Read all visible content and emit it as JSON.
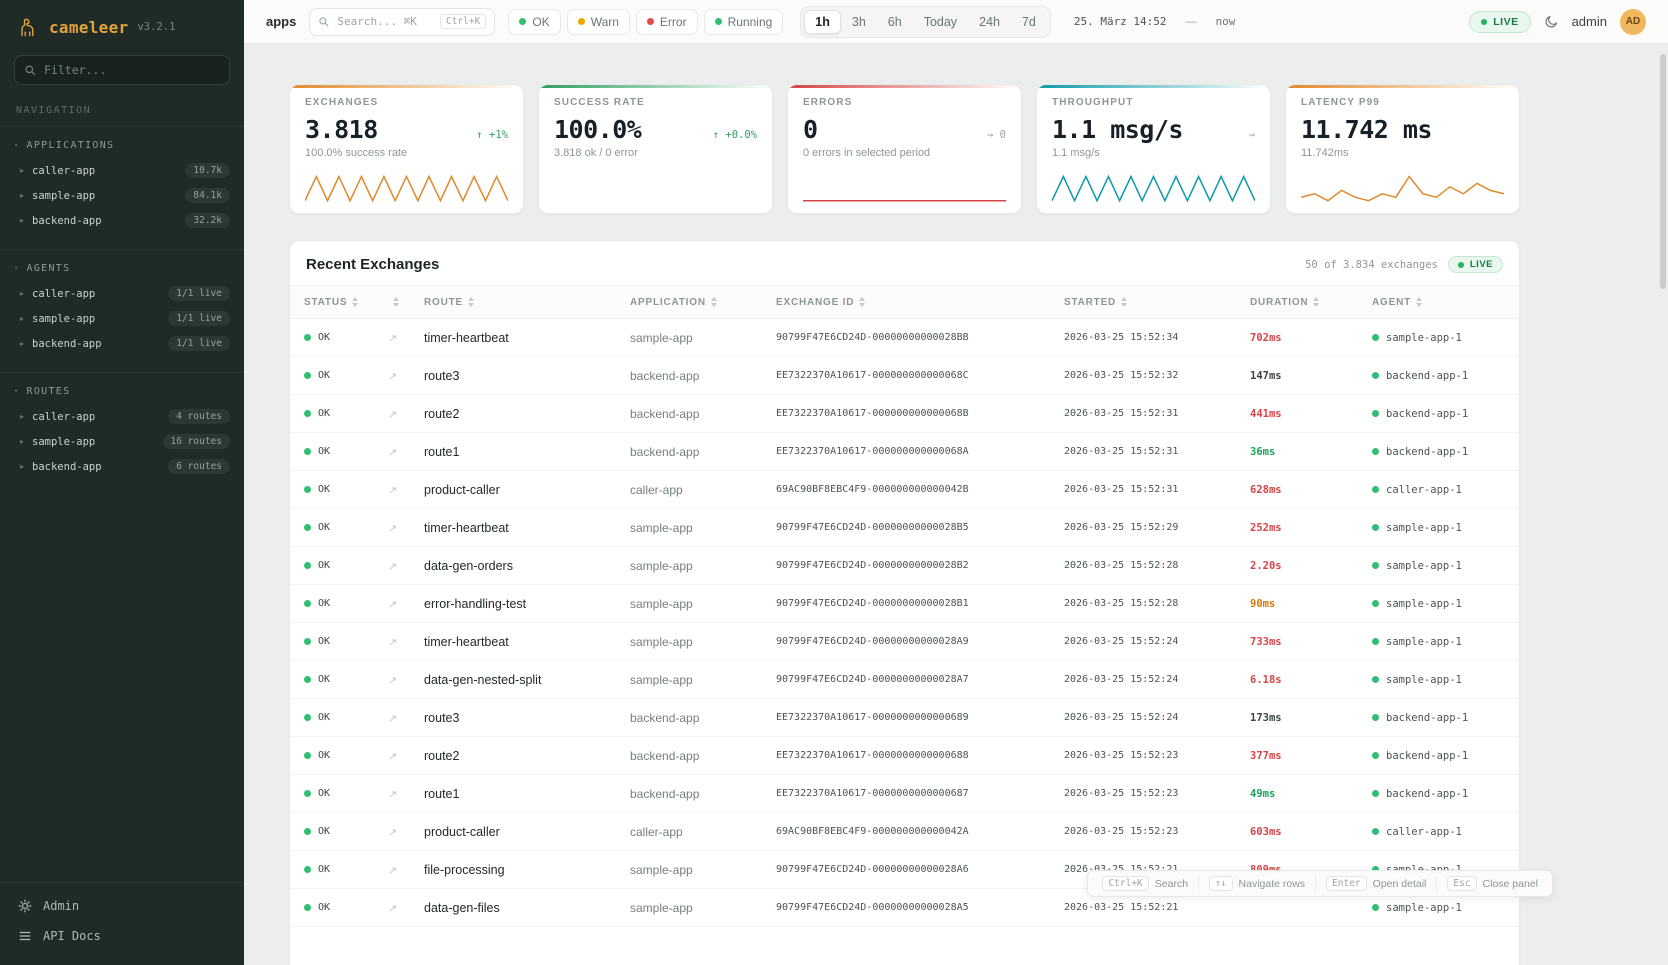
{
  "app": {
    "name": "cameleer",
    "version": "v3.2.1"
  },
  "icons": {
    "chevron": "▸",
    "caret": "▾",
    "expand": "↗"
  },
  "sidebar": {
    "filter_placeholder": "Filter...",
    "nav_label": "NAVIGATION",
    "applications": {
      "label": "APPLICATIONS",
      "items": [
        {
          "label": "caller-app",
          "badge": "10.7k"
        },
        {
          "label": "sample-app",
          "badge": "84.1k"
        },
        {
          "label": "backend-app",
          "badge": "32.2k"
        }
      ]
    },
    "agents": {
      "label": "AGENTS",
      "items": [
        {
          "label": "caller-app",
          "badge": "1/1 live"
        },
        {
          "label": "sample-app",
          "badge": "1/1 live"
        },
        {
          "label": "backend-app",
          "badge": "1/1 live"
        }
      ]
    },
    "routes": {
      "label": "ROUTES",
      "items": [
        {
          "label": "caller-app",
          "badge": "4 routes"
        },
        {
          "label": "sample-app",
          "badge": "16 routes"
        },
        {
          "label": "backend-app",
          "badge": "6 routes"
        }
      ]
    },
    "footer": {
      "admin": "Admin",
      "api_docs": "API Docs"
    }
  },
  "topbar": {
    "context": "apps",
    "search": {
      "placeholder": "Search... ⌘K",
      "kbd": "Ctrl+K"
    },
    "chips": [
      {
        "label": "OK",
        "color": "#2fbf71"
      },
      {
        "label": "Warn",
        "color": "#f0a500"
      },
      {
        "label": "Error",
        "color": "#e5484d"
      },
      {
        "label": "Running",
        "color": "#2fbf71"
      }
    ],
    "ranges": [
      {
        "label": "1h",
        "active": true
      },
      {
        "label": "3h"
      },
      {
        "label": "6h"
      },
      {
        "label": "Today"
      },
      {
        "label": "24h"
      },
      {
        "label": "7d"
      }
    ],
    "datetime": "25. März 14:52",
    "separator": "—",
    "now_label": "now",
    "live_label": "LIVE",
    "user": "admin",
    "avatar": "AD"
  },
  "cards": [
    {
      "title": "EXCHANGES",
      "value": "3.818",
      "delta": "↑ +1%",
      "delta_color": "#2f9e62",
      "sub": "100.0% success rate",
      "accent": "#e08a2e",
      "spark_color": "#e08a2e",
      "spark": [
        1,
        9,
        1,
        9,
        1,
        9,
        1,
        9,
        1,
        9,
        1,
        9,
        1,
        9,
        1,
        9,
        1,
        9,
        1
      ]
    },
    {
      "title": "SUCCESS RATE",
      "value": "100.0%",
      "delta": "↑ +0.0%",
      "delta_color": "#2f9e62",
      "sub": "3.818 ok / 0 error",
      "accent": "#2f9e62",
      "spark_color": "#2f9e62",
      "spark": []
    },
    {
      "title": "ERRORS",
      "value": "0",
      "delta": "→ 0",
      "delta_color": "#9ca6a1",
      "sub": "0 errors in selected period",
      "accent": "#d64545",
      "spark_color": "#d64545",
      "spark": [
        0,
        0,
        0,
        0,
        0,
        0,
        0,
        0,
        0,
        0
      ]
    },
    {
      "title": "THROUGHPUT",
      "value": "1.1 msg/s",
      "delta": "→",
      "delta_color": "#9ca6a1",
      "sub": "1.1 msg/s",
      "accent": "#0e9aa7",
      "spark_color": "#0e9aa7",
      "spark": [
        1,
        9,
        1,
        9,
        1,
        9,
        1,
        9,
        1,
        9,
        1,
        9,
        1,
        9,
        1,
        9,
        1,
        9,
        1
      ]
    },
    {
      "title": "LATENCY P99",
      "value": "11.742 ms",
      "delta": "",
      "delta_color": "#9ca6a1",
      "sub": "11.742ms",
      "accent": "#e08a2e",
      "spark_color": "#e08a2e",
      "spark": [
        2.5,
        3,
        2,
        3.5,
        2.5,
        2,
        3,
        2.5,
        5.5,
        3,
        2.5,
        4,
        3,
        4.5,
        3.5,
        3
      ]
    }
  ],
  "table": {
    "title": "Recent Exchanges",
    "summary": "50 of 3.834 exchanges",
    "live_label": "LIVE",
    "columns": [
      {
        "label": "STATUS"
      },
      {
        "label": ""
      },
      {
        "label": "ROUTE"
      },
      {
        "label": "APPLICATION"
      },
      {
        "label": "EXCHANGE ID"
      },
      {
        "label": "STARTED"
      },
      {
        "label": "DURATION"
      },
      {
        "label": "AGENT"
      }
    ],
    "rows": [
      {
        "status": "OK",
        "route": "timer-heartbeat",
        "app": "sample-app",
        "exchange_id": "90799F47E6CD24D-00000000000028BB",
        "started": "2026-03-25 15:52:34",
        "duration": "702ms",
        "duration_color": "#d64545",
        "agent": "sample-app-1"
      },
      {
        "status": "OK",
        "route": "route3",
        "app": "backend-app",
        "exchange_id": "EE7322370A10617-000000000000068C",
        "started": "2026-03-25 15:52:32",
        "duration": "147ms",
        "duration_color": "#3c463f",
        "agent": "backend-app-1"
      },
      {
        "status": "OK",
        "route": "route2",
        "app": "backend-app",
        "exchange_id": "EE7322370A10617-000000000000068B",
        "started": "2026-03-25 15:52:31",
        "duration": "441ms",
        "duration_color": "#d64545",
        "agent": "backend-app-1"
      },
      {
        "status": "OK",
        "route": "route1",
        "app": "backend-app",
        "exchange_id": "EE7322370A10617-000000000000068A",
        "started": "2026-03-25 15:52:31",
        "duration": "36ms",
        "duration_color": "#18a558",
        "agent": "backend-app-1"
      },
      {
        "status": "OK",
        "route": "product-caller",
        "app": "caller-app",
        "exchange_id": "69AC90BF8EBC4F9-000000000000042B",
        "started": "2026-03-25 15:52:31",
        "duration": "628ms",
        "duration_color": "#d64545",
        "agent": "caller-app-1"
      },
      {
        "status": "OK",
        "route": "timer-heartbeat",
        "app": "sample-app",
        "exchange_id": "90799F47E6CD24D-00000000000028B5",
        "started": "2026-03-25 15:52:29",
        "duration": "252ms",
        "duration_color": "#d64545",
        "agent": "sample-app-1"
      },
      {
        "status": "OK",
        "route": "data-gen-orders",
        "app": "sample-app",
        "exchange_id": "90799F47E6CD24D-00000000000028B2",
        "started": "2026-03-25 15:52:28",
        "duration": "2.20s",
        "duration_color": "#d64545",
        "agent": "sample-app-1"
      },
      {
        "status": "OK",
        "route": "error-handling-test",
        "app": "sample-app",
        "exchange_id": "90799F47E6CD24D-00000000000028B1",
        "started": "2026-03-25 15:52:28",
        "duration": "90ms",
        "duration_color": "#d97706",
        "agent": "sample-app-1"
      },
      {
        "status": "OK",
        "route": "timer-heartbeat",
        "app": "sample-app",
        "exchange_id": "90799F47E6CD24D-00000000000028A9",
        "started": "2026-03-25 15:52:24",
        "duration": "733ms",
        "duration_color": "#d64545",
        "agent": "sample-app-1"
      },
      {
        "status": "OK",
        "route": "data-gen-nested-split",
        "app": "sample-app",
        "exchange_id": "90799F47E6CD24D-00000000000028A7",
        "started": "2026-03-25 15:52:24",
        "duration": "6.18s",
        "duration_color": "#d64545",
        "agent": "sample-app-1"
      },
      {
        "status": "OK",
        "route": "route3",
        "app": "backend-app",
        "exchange_id": "EE7322370A10617-0000000000000689",
        "started": "2026-03-25 15:52:24",
        "duration": "173ms",
        "duration_color": "#3c463f",
        "agent": "backend-app-1"
      },
      {
        "status": "OK",
        "route": "route2",
        "app": "backend-app",
        "exchange_id": "EE7322370A10617-0000000000000688",
        "started": "2026-03-25 15:52:23",
        "duration": "377ms",
        "duration_color": "#d64545",
        "agent": "backend-app-1"
      },
      {
        "status": "OK",
        "route": "route1",
        "app": "backend-app",
        "exchange_id": "EE7322370A10617-0000000000000687",
        "started": "2026-03-25 15:52:23",
        "duration": "49ms",
        "duration_color": "#18a558",
        "agent": "backend-app-1"
      },
      {
        "status": "OK",
        "route": "product-caller",
        "app": "caller-app",
        "exchange_id": "69AC90BF8EBC4F9-000000000000042A",
        "started": "2026-03-25 15:52:23",
        "duration": "603ms",
        "duration_color": "#d64545",
        "agent": "caller-app-1"
      },
      {
        "status": "OK",
        "route": "file-processing",
        "app": "sample-app",
        "exchange_id": "90799F47E6CD24D-00000000000028A6",
        "started": "2026-03-25 15:52:21",
        "duration": "809ms",
        "duration_color": "#d64545",
        "agent": "sample-app-1"
      },
      {
        "status": "OK",
        "route": "data-gen-files",
        "app": "sample-app",
        "exchange_id": "90799F47E6CD24D-00000000000028A5",
        "started": "2026-03-25 15:52:21",
        "duration": "",
        "duration_color": "#3c463f",
        "agent": "sample-app-1"
      }
    ]
  },
  "hints": [
    {
      "key": "Ctrl+K",
      "label": "Search"
    },
    {
      "key": "↑↓",
      "label": "Navigate rows"
    },
    {
      "key": "Enter",
      "label": "Open detail"
    },
    {
      "key": "Esc",
      "label": "Close panel"
    }
  ]
}
